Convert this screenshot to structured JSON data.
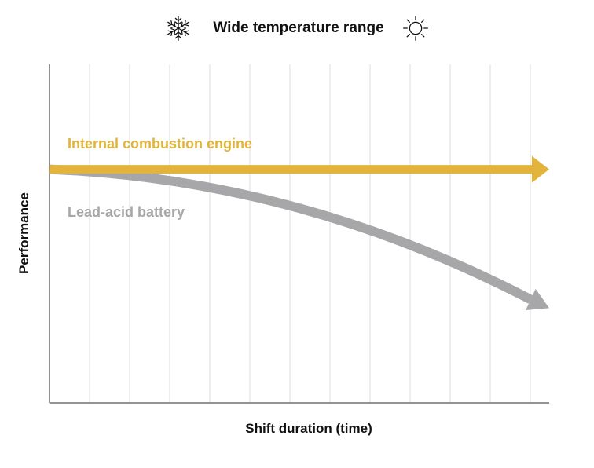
{
  "header": {
    "title": "Wide temperature range",
    "left_icon": "snowflake-icon",
    "right_icon": "sun-icon"
  },
  "chart_data": {
    "type": "line",
    "title": "Wide temperature range",
    "xlabel": "Shift duration (time)",
    "ylabel": "Performance",
    "x_ticks_shown": false,
    "y_ticks_shown": false,
    "grid": "vertical",
    "series": [
      {
        "name": "Internal combustion engine",
        "color": "#E2B43B",
        "shape": "straight-arrow",
        "x": [
          0,
          1
        ],
        "y": [
          0.69,
          0.69
        ]
      },
      {
        "name": "Lead-acid battery",
        "color": "#A7A7A9",
        "shape": "curved-arrow",
        "x": [
          0,
          0.25,
          0.5,
          0.75,
          1
        ],
        "y": [
          0.69,
          0.66,
          0.58,
          0.45,
          0.28
        ]
      }
    ]
  }
}
